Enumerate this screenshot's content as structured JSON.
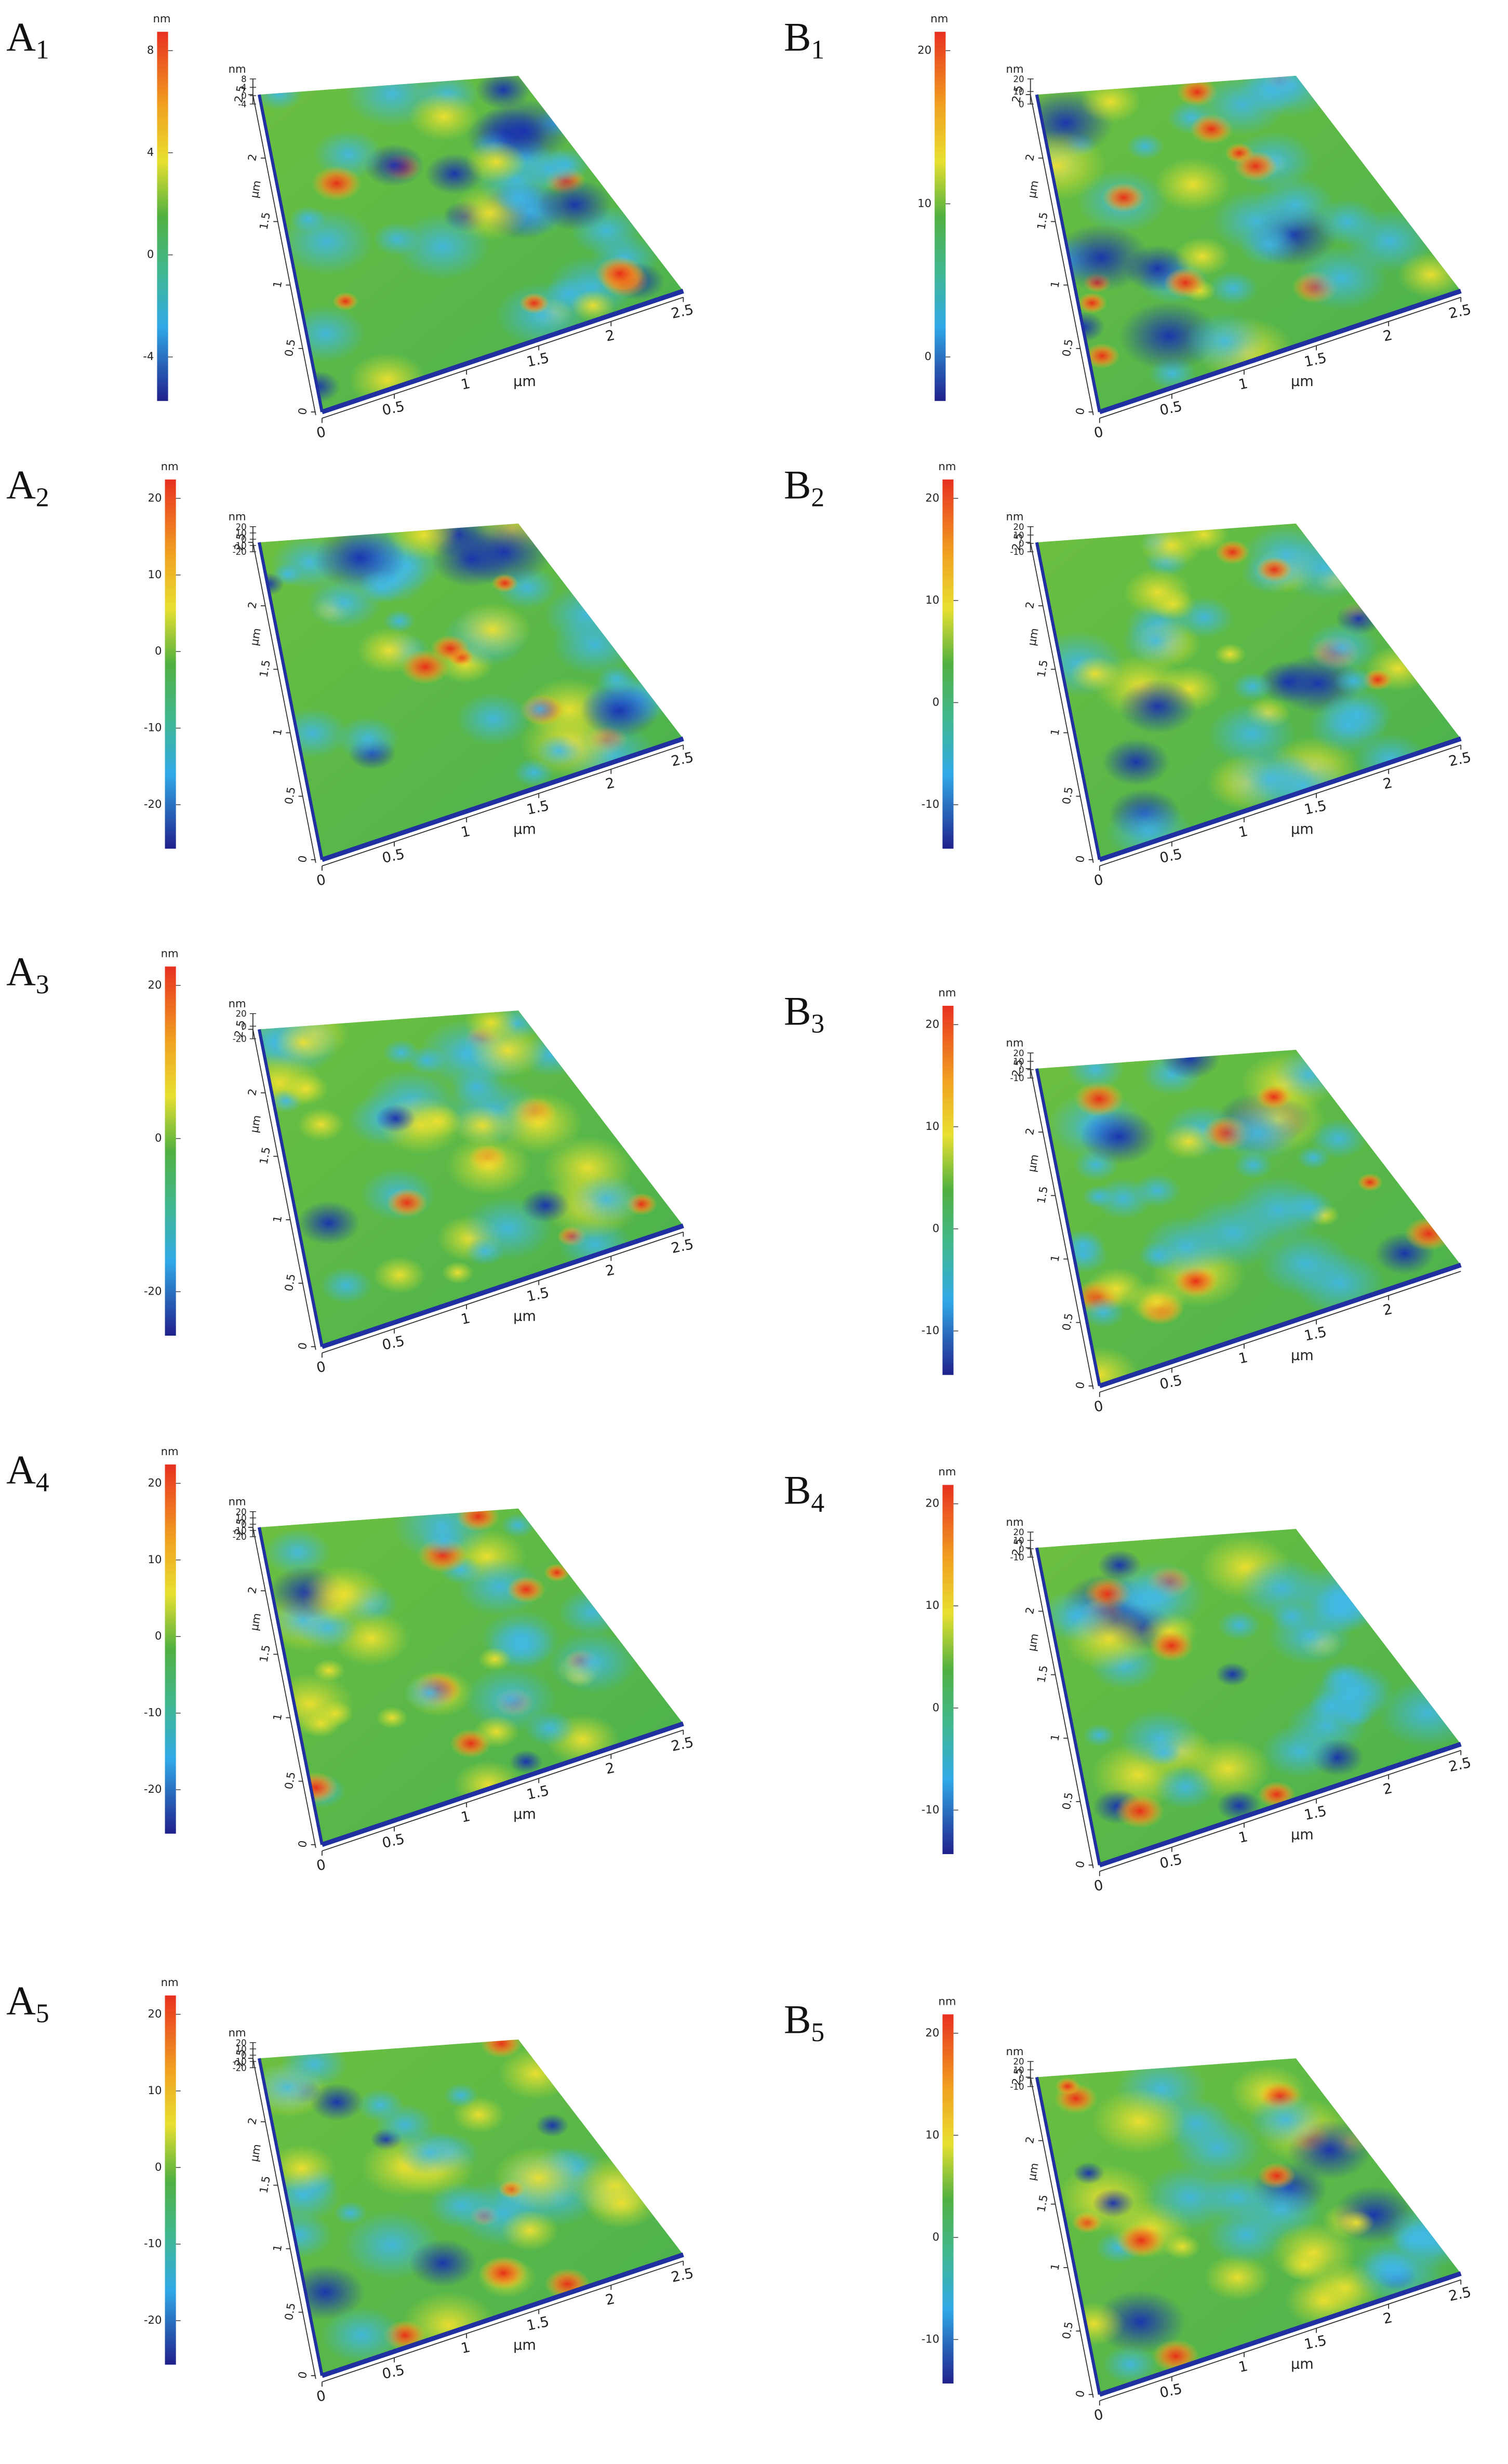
{
  "panels": [
    {
      "label": {
        "letter": "A",
        "sub": "1"
      },
      "colorbar_unit": "nm",
      "colorbar_ticks": [
        8,
        4,
        0,
        -4
      ],
      "z_unit": "nm",
      "z_ticks": [
        8,
        4,
        0,
        -4
      ],
      "x_unit": "μm",
      "x_ticks": [
        0,
        0.5,
        1,
        1.5,
        2,
        2.5
      ],
      "y_unit": "μm",
      "y_ticks": [
        0,
        0.5,
        1,
        1.5,
        2,
        2.5
      ]
    },
    {
      "label": {
        "letter": "A",
        "sub": "2"
      },
      "colorbar_unit": "nm",
      "colorbar_ticks": [
        20,
        10,
        0,
        -10,
        -20
      ],
      "z_unit": "nm",
      "z_ticks": [
        20,
        10,
        0,
        -10,
        -20
      ],
      "x_unit": "μm",
      "x_ticks": [
        0,
        0.5,
        1,
        1.5,
        2,
        2.5
      ],
      "y_unit": "μm",
      "y_ticks": [
        0,
        0.5,
        1,
        1.5,
        2,
        2.5
      ]
    },
    {
      "label": {
        "letter": "A",
        "sub": "3"
      },
      "colorbar_unit": "nm",
      "colorbar_ticks": [
        20,
        0,
        -20
      ],
      "z_unit": "nm",
      "z_ticks": [
        20,
        0,
        -20
      ],
      "x_unit": "μm",
      "x_ticks": [
        0,
        0.5,
        1,
        1.5,
        2,
        2.5
      ],
      "y_unit": "μm",
      "y_ticks": [
        0,
        0.5,
        1,
        1.5,
        2,
        2.5
      ]
    },
    {
      "label": {
        "letter": "A",
        "sub": "4"
      },
      "colorbar_unit": "nm",
      "colorbar_ticks": [
        20,
        10,
        0,
        -10,
        -20
      ],
      "z_unit": "nm",
      "z_ticks": [
        20,
        10,
        0,
        -10,
        -20
      ],
      "x_unit": "μm",
      "x_ticks": [
        0,
        0.5,
        1,
        1.5,
        2,
        2.5
      ],
      "y_unit": "μm",
      "y_ticks": [
        0,
        0.5,
        1,
        1.5,
        2,
        2.5
      ]
    },
    {
      "label": {
        "letter": "A",
        "sub": "5"
      },
      "colorbar_unit": "nm",
      "colorbar_ticks": [
        20,
        10,
        0,
        -10,
        -20
      ],
      "z_unit": "nm",
      "z_ticks": [
        20,
        10,
        0,
        -10,
        -20
      ],
      "x_unit": "μm",
      "x_ticks": [
        0,
        0.5,
        1,
        1.5,
        2,
        2.5
      ],
      "y_unit": "μm",
      "y_ticks": [
        0,
        0.5,
        1,
        1.5,
        2,
        2.5
      ]
    },
    {
      "label": {
        "letter": "B",
        "sub": "1"
      },
      "colorbar_unit": "nm",
      "colorbar_ticks": [
        20,
        10,
        0
      ],
      "z_unit": "nm",
      "z_ticks": [
        20,
        10,
        0
      ],
      "x_unit": "μm",
      "x_ticks": [
        0,
        0.5,
        1,
        1.5,
        2,
        2.5
      ],
      "y_unit": "μm",
      "y_ticks": [
        0,
        0.5,
        1,
        1.5,
        2,
        2.5
      ]
    },
    {
      "label": {
        "letter": "B",
        "sub": "2"
      },
      "colorbar_unit": "nm",
      "colorbar_ticks": [
        20,
        10,
        0,
        -10
      ],
      "z_unit": "nm",
      "z_ticks": [
        20,
        10,
        0,
        -10
      ],
      "x_unit": "μm",
      "x_ticks": [
        0,
        0.5,
        1,
        1.5,
        2,
        2.5
      ],
      "y_unit": "μm",
      "y_ticks": [
        0,
        0.5,
        1,
        1.5,
        2,
        2.5
      ]
    },
    {
      "label": {
        "letter": "B",
        "sub": "3"
      },
      "colorbar_unit": "nm",
      "colorbar_ticks": [
        20,
        10,
        0,
        -10
      ],
      "z_unit": "nm",
      "z_ticks": [
        20,
        10,
        0,
        -10
      ],
      "x_unit": "μm",
      "x_ticks": [
        0,
        0.5,
        1,
        1.5,
        2
      ],
      "y_unit": "μm",
      "y_ticks": [
        0,
        0.5,
        1,
        1.5,
        2,
        2.5
      ]
    },
    {
      "label": {
        "letter": "B",
        "sub": "4"
      },
      "colorbar_unit": "nm",
      "colorbar_ticks": [
        20,
        10,
        0,
        -10
      ],
      "z_unit": "nm",
      "z_ticks": [
        20,
        10,
        0,
        -10
      ],
      "x_unit": "μm",
      "x_ticks": [
        0,
        0.5,
        1,
        1.5,
        2,
        2.5
      ],
      "y_unit": "μm",
      "y_ticks": [
        0,
        0.5,
        1,
        1.5,
        2,
        2.5
      ]
    },
    {
      "label": {
        "letter": "B",
        "sub": "5"
      },
      "colorbar_unit": "nm",
      "colorbar_ticks": [
        20,
        10,
        0,
        -10
      ],
      "z_unit": "nm",
      "z_ticks": [
        20,
        10,
        0,
        -10
      ],
      "x_unit": "μm",
      "x_ticks": [
        0,
        0.5,
        1,
        1.5,
        2,
        2.5
      ],
      "y_unit": "μm",
      "y_ticks": [
        0,
        0.5,
        1,
        1.5,
        2,
        2.5
      ]
    }
  ]
}
